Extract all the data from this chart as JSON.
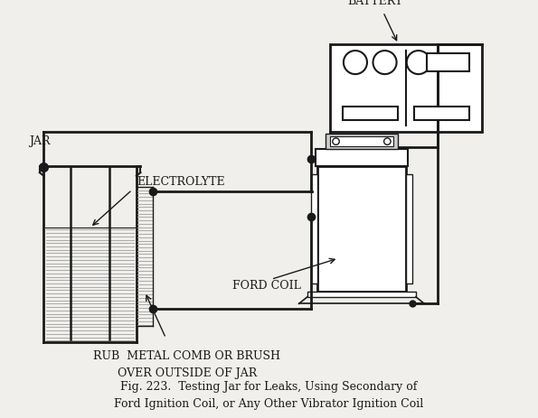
{
  "bg_color": "#f0efeb",
  "line_color": "#1a1a1a",
  "title": "Fig. 223.  Testing Jar for Leaks, Using Secondary of\nFord Ignition Coil, or Any Other Vibrator Ignition Coil",
  "label_jar": "JAR",
  "label_electrolyte": "ELECTROLYTE",
  "label_battery": "BATTERY",
  "label_ford_coil": "FORD COIL",
  "label_rub": "RUB  METAL COMB OR BRUSH\nOVER OUTSIDE OF JAR",
  "title_fontsize": 9,
  "label_fontsize": 9,
  "fig_width": 5.95,
  "fig_height": 4.64
}
